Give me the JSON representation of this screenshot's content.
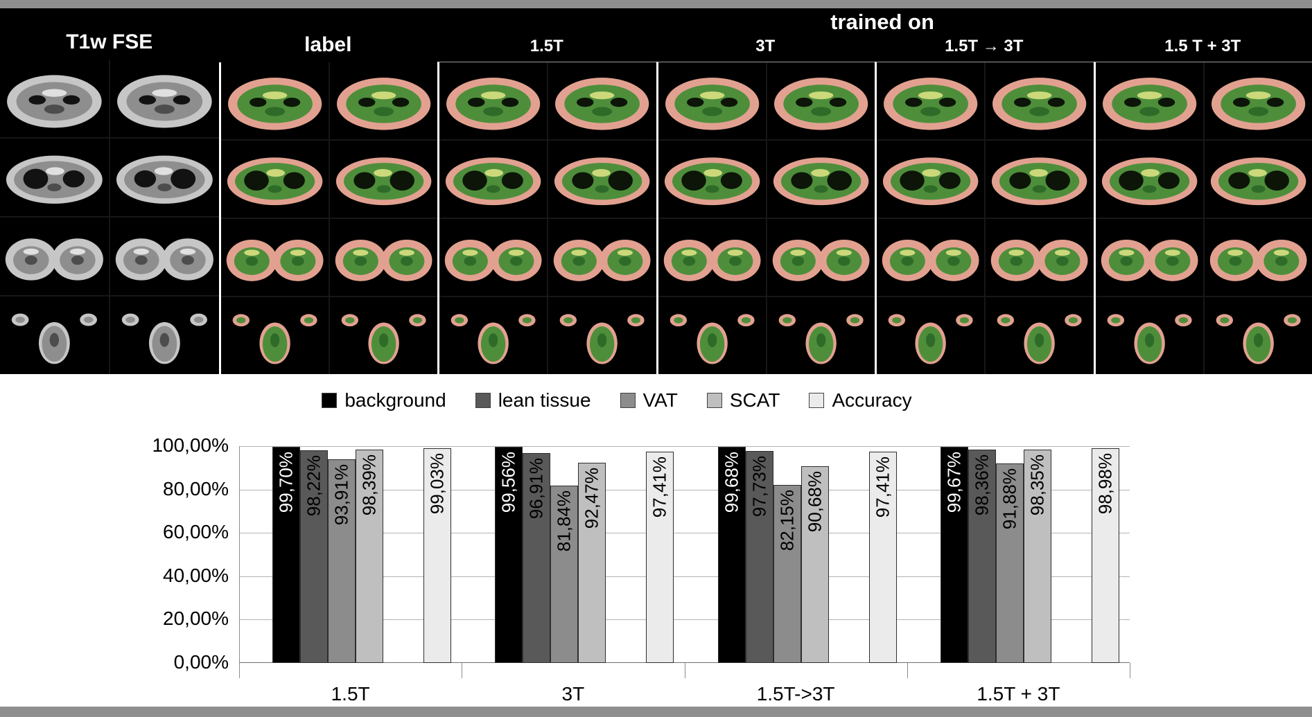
{
  "mri_panel": {
    "trained_on": "trained on",
    "groups": [
      {
        "title": "T1w FSE",
        "kind": "source",
        "palette": "gray"
      },
      {
        "title": "label",
        "kind": "source",
        "palette": "seg"
      },
      {
        "title": "1.5T",
        "kind": "trained",
        "palette": "seg"
      },
      {
        "title": "3T",
        "kind": "trained",
        "palette": "seg"
      },
      {
        "title": "1.5T → 3T",
        "kind": "trained",
        "palette": "seg"
      },
      {
        "title": "1.5 T + 3T",
        "kind": "trained",
        "palette": "seg"
      }
    ],
    "rows": [
      "pelvis",
      "abdomen",
      "hips",
      "head"
    ],
    "columns_per_group": 2
  },
  "chart_data": {
    "type": "bar",
    "title": "",
    "xlabel": "",
    "ylabel": "",
    "categories": [
      "1.5T",
      "3T",
      "1.5T->3T",
      "1.5T + 3T"
    ],
    "series": [
      {
        "name": "background",
        "color": "#000000",
        "label_color": "#ffffff",
        "values": [
          99.7,
          99.56,
          99.68,
          99.67
        ],
        "labels": [
          "99,70%",
          "99,56%",
          "99,68%",
          "99,67%"
        ]
      },
      {
        "name": "lean tissue",
        "color": "#595959",
        "label_color": "#000000",
        "values": [
          98.22,
          96.91,
          97.73,
          98.36
        ],
        "labels": [
          "98,22%",
          "96,91%",
          "97,73%",
          "98,36%"
        ]
      },
      {
        "name": "VAT",
        "color": "#8c8c8c",
        "label_color": "#000000",
        "values": [
          93.91,
          81.84,
          82.15,
          91.88
        ],
        "labels": [
          "93,91%",
          "81,84%",
          "82,15%",
          "91,88%"
        ]
      },
      {
        "name": "SCAT",
        "color": "#bfbfbf",
        "label_color": "#000000",
        "values": [
          98.39,
          92.47,
          90.68,
          98.35
        ],
        "labels": [
          "98,39%",
          "92,47%",
          "90,68%",
          "98,35%"
        ]
      },
      {
        "name": "Accuracy",
        "color": "#ebebeb",
        "label_color": "#000000",
        "values": [
          99.03,
          97.41,
          97.41,
          98.98
        ],
        "labels": [
          "99,03%",
          "97,41%",
          "97,41%",
          "98,98%"
        ]
      }
    ],
    "ylim": [
      0,
      100
    ],
    "yticks": [
      "0,00%",
      "20,00%",
      "40,00%",
      "60,00%",
      "80,00%",
      "100,00%"
    ],
    "grid": true,
    "legend_position": "top"
  },
  "colors": {
    "frame_gray": "#8f8f8f",
    "mri_background": "#000000",
    "segmentation_fat": "#e2a190",
    "segmentation_lean": "#4e8e3b",
    "gridline": "#b3b3b3"
  }
}
